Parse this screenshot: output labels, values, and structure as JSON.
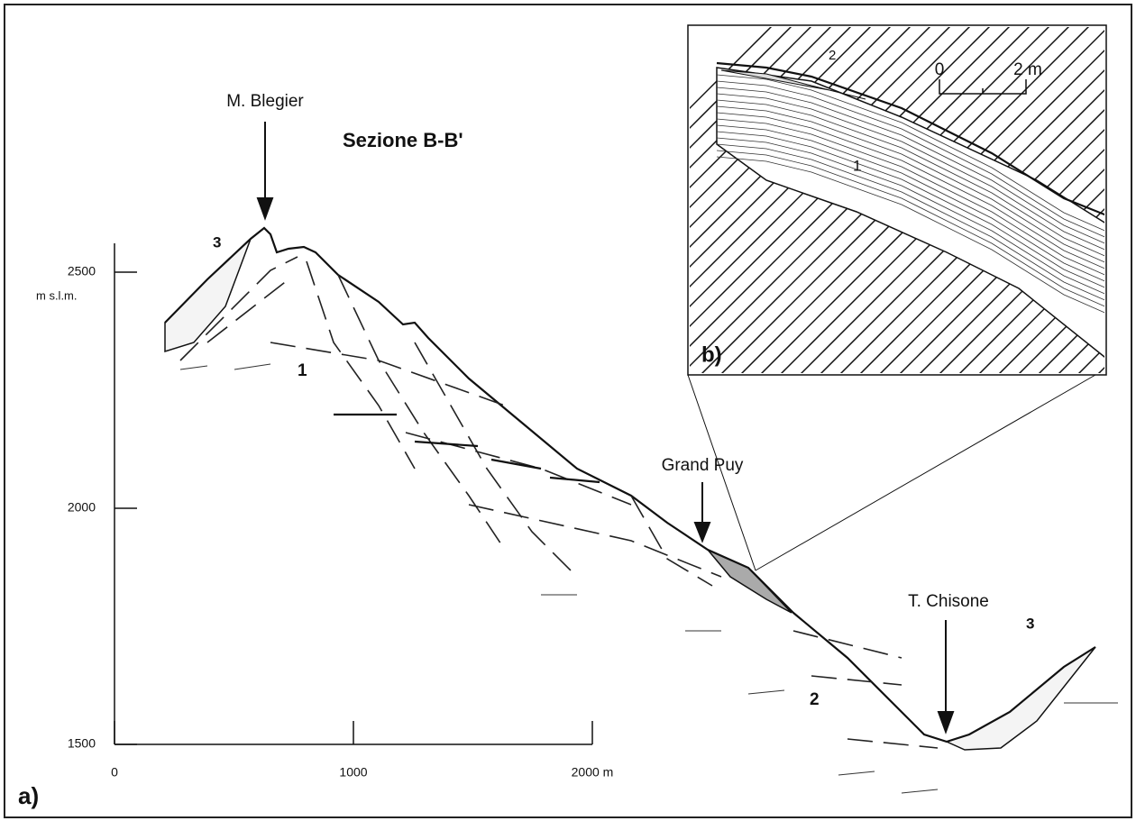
{
  "section_title": "Sezione B-B'",
  "panel_a": {
    "label": "a)",
    "places": [
      "M. Blegier",
      "Grand Puy",
      "T. Chisone"
    ],
    "units": [
      "3",
      "1",
      "2",
      "3"
    ],
    "y_axis": {
      "unit": "m s.l.m.",
      "ticks": [
        1500,
        2000,
        2500
      ]
    },
    "x_axis": {
      "ticks": [
        0,
        1000,
        {
          "value": 2000,
          "label": "2000 m"
        }
      ]
    }
  },
  "panel_b": {
    "label": "b)",
    "units": [
      "2",
      "1"
    ],
    "scale": {
      "start": "0",
      "end": "2 m"
    }
  }
}
